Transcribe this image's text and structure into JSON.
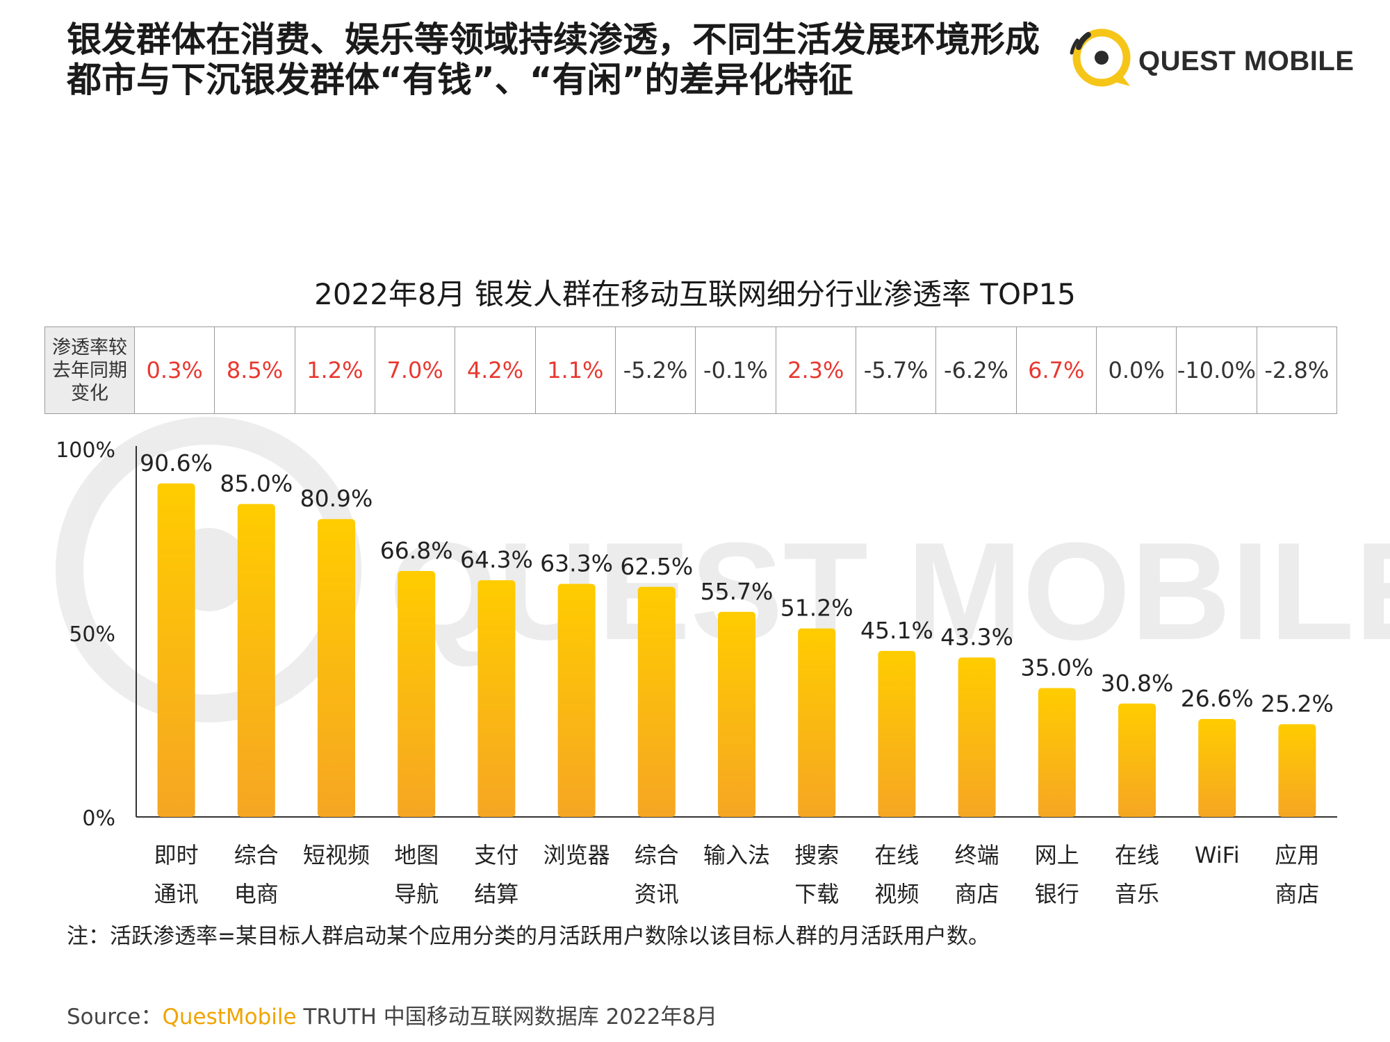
{
  "headline": {
    "line1": "银发群体在消费、娱乐等领域持续渗透，不同生活发展环境形成",
    "line2": "都市与下沉银发群体“有钱”、“有闲”的差异化特征"
  },
  "brand": {
    "name": "QUEST MOBILE",
    "watermark": "QUEST MOBILE"
  },
  "colors": {
    "bar_top": "#ffcc00",
    "bar_bottom": "#f6a623",
    "positive_change": "#e8382f",
    "logo_yellow": "#f5c518"
  },
  "table": {
    "header": "渗透率较去年同期变化",
    "values": [
      "0.3%",
      "8.5%",
      "1.2%",
      "7.0%",
      "4.2%",
      "1.1%",
      "-5.2%",
      "-0.1%",
      "2.3%",
      "-5.7%",
      "-6.2%",
      "6.7%",
      "0.0%",
      "-10.0%",
      "-2.8%"
    ],
    "positive": [
      true,
      true,
      true,
      true,
      true,
      true,
      false,
      false,
      true,
      false,
      false,
      true,
      false,
      false,
      false
    ]
  },
  "chart_data": {
    "type": "bar",
    "title": "2022年8月 银发人群在移动互联网细分行业渗透率 TOP15",
    "categories": [
      [
        "即时",
        "通讯"
      ],
      [
        "综合",
        "电商"
      ],
      [
        "短视频"
      ],
      [
        "地图",
        "导航"
      ],
      [
        "支付",
        "结算"
      ],
      [
        "浏览器"
      ],
      [
        "综合",
        "资讯"
      ],
      [
        "输入法"
      ],
      [
        "搜索",
        "下载"
      ],
      [
        "在线",
        "视频"
      ],
      [
        "终端",
        "商店"
      ],
      [
        "网上",
        "银行"
      ],
      [
        "在线",
        "音乐"
      ],
      [
        "WiFi"
      ],
      [
        "应用",
        "商店"
      ]
    ],
    "values": [
      90.6,
      85.0,
      80.9,
      66.8,
      64.3,
      63.3,
      62.5,
      55.7,
      51.2,
      45.1,
      43.3,
      35.0,
      30.8,
      26.6,
      25.2
    ],
    "value_labels": [
      "90.6%",
      "85.0%",
      "80.9%",
      "66.8%",
      "64.3%",
      "63.3%",
      "62.5%",
      "55.7%",
      "51.2%",
      "45.1%",
      "43.3%",
      "35.0%",
      "30.8%",
      "26.6%",
      "25.2%"
    ],
    "y_ticks": [
      0,
      50,
      100
    ],
    "y_tick_labels": [
      "0%",
      "50%",
      "100%"
    ],
    "ylim": [
      0,
      100
    ],
    "grid": false,
    "legend": "none"
  },
  "note": "注：活跃渗透率=某目标人群启动某个应用分类的月活跃用户数除以该目标人群的月活跃用户数。",
  "source": {
    "label": "Source：",
    "brand": "QuestMobile",
    "rest": " TRUTH 中国移动互联网数据库 2022年8月"
  }
}
